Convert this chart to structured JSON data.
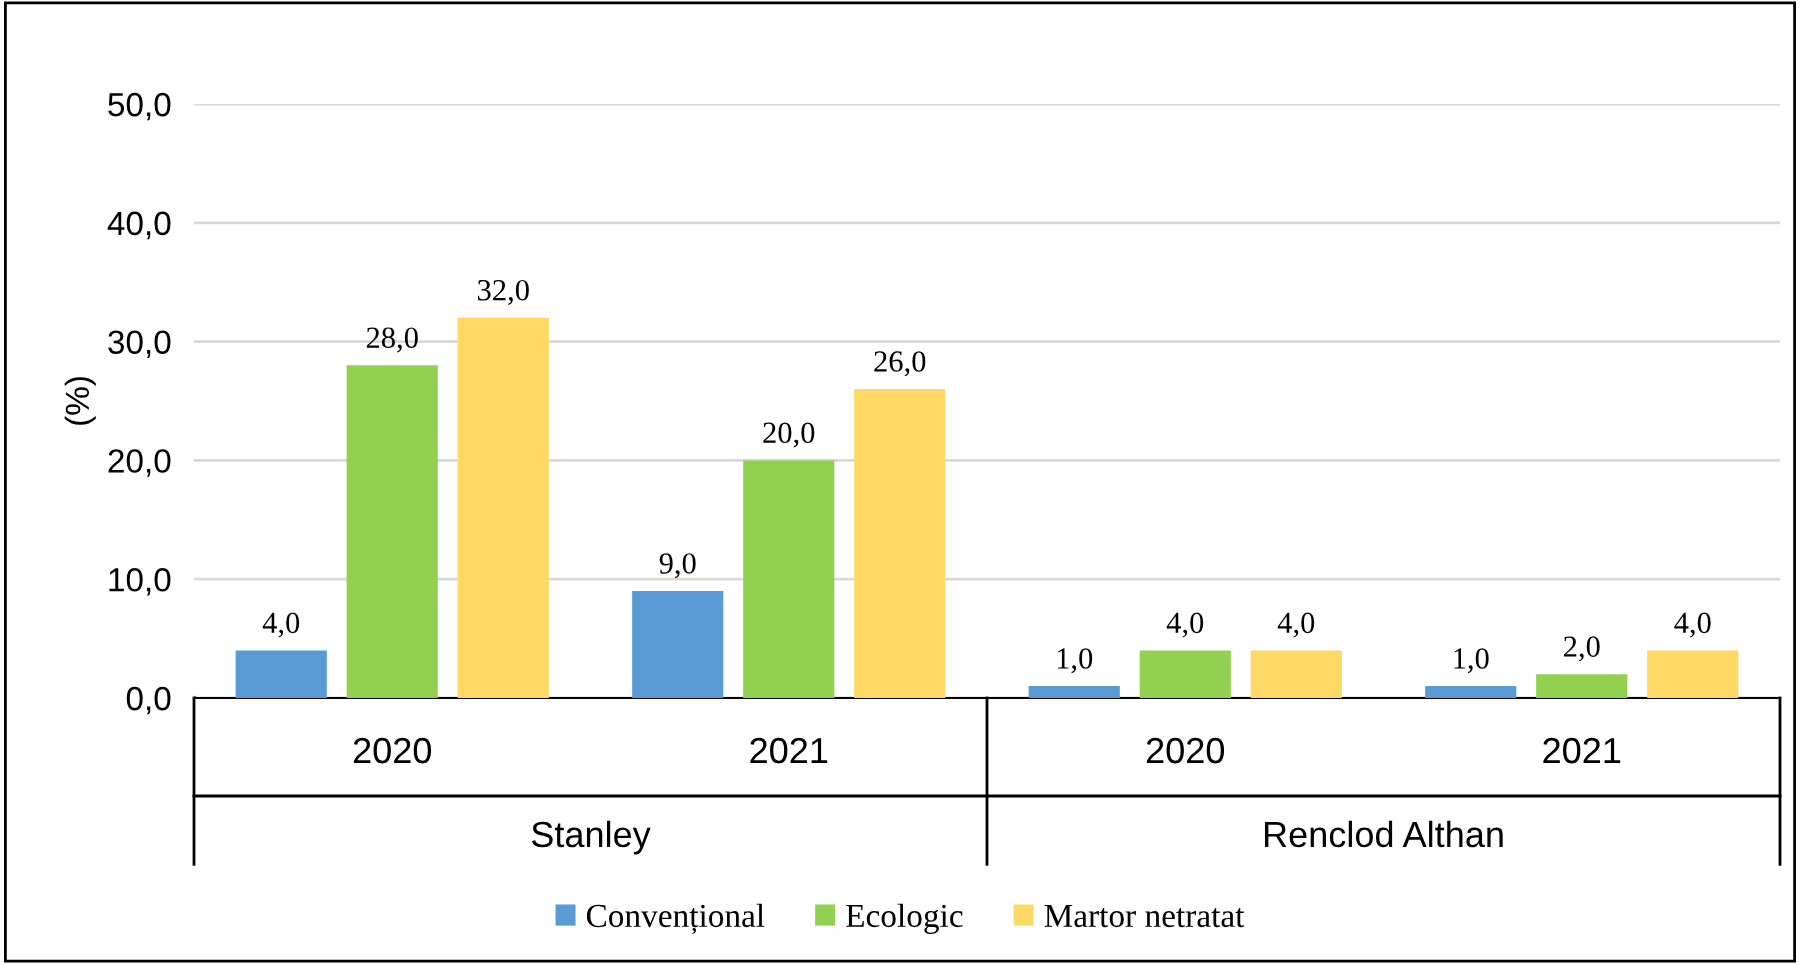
{
  "chart_data": {
    "type": "bar",
    "ylabel": "(%)",
    "categories": [
      "2020",
      "2021",
      "2020",
      "2021"
    ],
    "annotations": [
      "Stanley",
      "Renclod Althan"
    ],
    "series": [
      {
        "name": "Convențional",
        "color": "#5b9bd5",
        "values": [
          4.0,
          9.0,
          1.0,
          1.0
        ],
        "value_labels": [
          "4,0",
          "9,0",
          "1,0",
          "1,0"
        ]
      },
      {
        "name": "Ecologic",
        "color": "#92d050",
        "values": [
          28.0,
          20.0,
          4.0,
          2.0
        ],
        "value_labels": [
          "28,0",
          "20,0",
          "4,0",
          "2,0"
        ]
      },
      {
        "name": "Martor netratat",
        "color": "#ffd966",
        "values": [
          32.0,
          26.0,
          4.0,
          4.0
        ],
        "value_labels": [
          "32,0",
          "26,0",
          "4,0",
          "4,0"
        ]
      }
    ],
    "ylim": [
      0,
      50
    ],
    "yticks": [
      {
        "value": 0,
        "label": "0,0"
      },
      {
        "value": 10,
        "label": "10,0"
      },
      {
        "value": 20,
        "label": "20,0"
      },
      {
        "value": 30,
        "label": "30,0"
      },
      {
        "value": 40,
        "label": "40,0"
      },
      {
        "value": 50,
        "label": "50,0"
      }
    ],
    "grid": "y",
    "legend": "bottom"
  }
}
